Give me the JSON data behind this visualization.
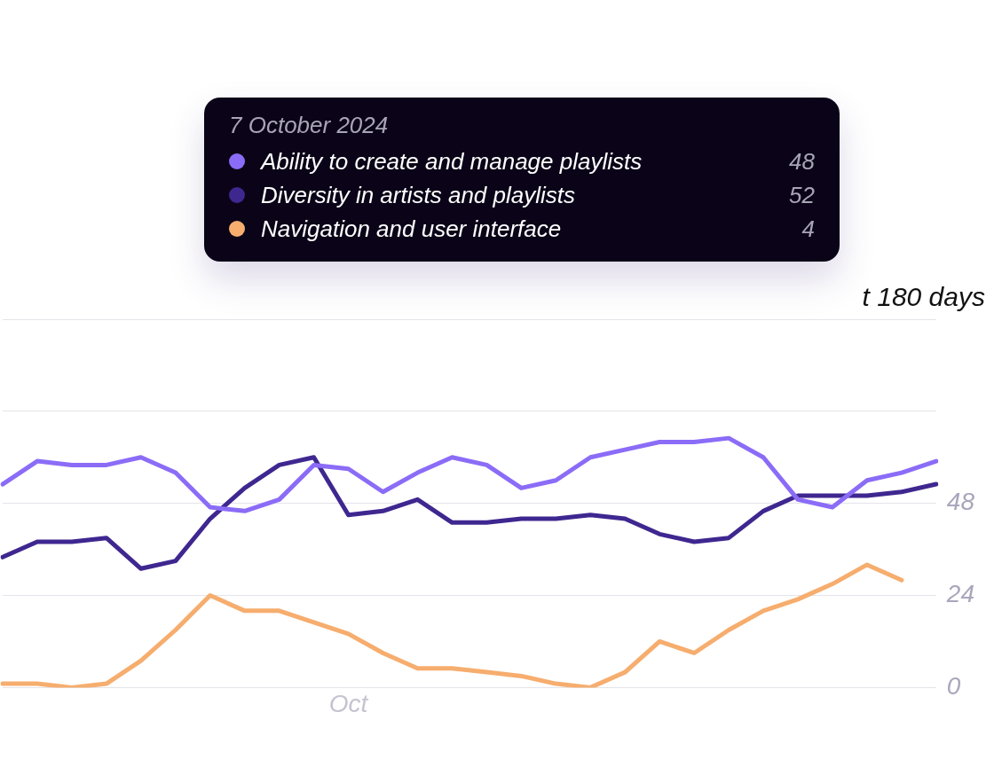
{
  "chart_data": {
    "type": "line",
    "categories": [
      null,
      null,
      null,
      null,
      null,
      null,
      null,
      null,
      null,
      null,
      "Oct",
      null,
      null,
      null,
      null,
      null,
      null,
      null,
      null,
      null,
      null,
      null,
      null,
      null,
      null,
      null,
      null,
      null
    ],
    "series": [
      {
        "name": "Ability to create and manage playlists",
        "color": "#8b6cf7",
        "values": [
          53,
          59,
          58,
          58,
          60,
          56,
          47,
          46,
          49,
          58,
          57,
          51,
          56,
          60,
          58,
          52,
          54,
          60,
          62,
          64,
          64,
          65,
          60,
          49,
          47,
          54,
          56,
          59
        ]
      },
      {
        "name": "Diversity in artists and playlists",
        "color": "#3f2790",
        "values": [
          34,
          38,
          38,
          39,
          31,
          33,
          44,
          52,
          58,
          60,
          45,
          46,
          49,
          43,
          43,
          44,
          44,
          45,
          44,
          40,
          38,
          39,
          46,
          50,
          50,
          50,
          51,
          53
        ]
      },
      {
        "name": "Navigation and user interface",
        "color": "#f6ad6e",
        "values": [
          1,
          1,
          0,
          1,
          7,
          15,
          24,
          20,
          20,
          17,
          14,
          9,
          5,
          5,
          4,
          3,
          1,
          0,
          4,
          12,
          9,
          15,
          20,
          23,
          27,
          32,
          28,
          null
        ]
      }
    ],
    "ylim": [
      0,
      96
    ],
    "yticks": [
      {
        "value": 0,
        "label": "0"
      },
      {
        "value": 24,
        "label": "24"
      },
      {
        "value": 48,
        "label": "48"
      },
      {
        "value": 72,
        "label": null
      },
      {
        "value": 96,
        "label": null
      }
    ],
    "grid": "y",
    "legend": "top",
    "marker": "none",
    "annotations": [
      "7 October 2024",
      "48",
      "52",
      "4",
      "t 180 days"
    ]
  }
}
